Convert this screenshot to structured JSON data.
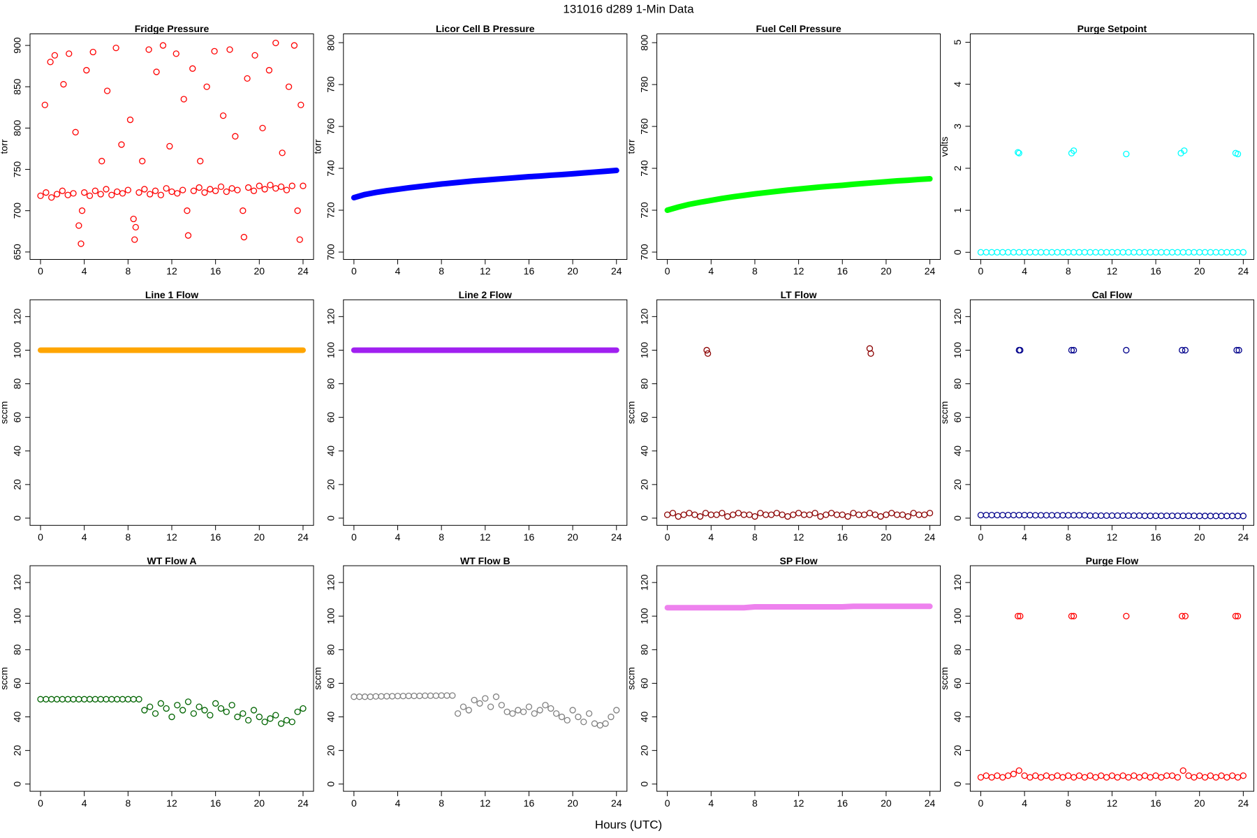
{
  "title": "131016   d289   1-Min Data",
  "x_label": "Hours (UTC)",
  "chart_data": [
    {
      "type": "scatter",
      "title": "Fridge Pressure",
      "y_label": "torr",
      "color": "#ff0000",
      "x": [
        0,
        0.5,
        1,
        1.5,
        2,
        2.5,
        3,
        3.5,
        3.7,
        3.8,
        4,
        4.5,
        5,
        5.5,
        6,
        6.5,
        7,
        7.5,
        8,
        8.5,
        8.6,
        8.7,
        9,
        9.5,
        10,
        10.5,
        11,
        11.5,
        12,
        12.5,
        13,
        13.4,
        13.5,
        14,
        14.5,
        15,
        15.5,
        16,
        16.5,
        17,
        17.5,
        18,
        18.5,
        18.6,
        19,
        19.5,
        20,
        20.5,
        21,
        21.5,
        22,
        22.5,
        23,
        23.5,
        23.7,
        24,
        0.4,
        0.9,
        1.3,
        2.1,
        2.6,
        3.2,
        4.2,
        4.8,
        5.6,
        6.1,
        6.9,
        7.4,
        8.2,
        9.3,
        9.9,
        10.6,
        11.2,
        11.8,
        12.4,
        13.1,
        13.9,
        14.6,
        15.2,
        15.9,
        16.7,
        17.3,
        17.8,
        18.9,
        19.6,
        20.3,
        20.9,
        21.5,
        22.1,
        22.7,
        23.2,
        23.8
      ],
      "values": [
        718,
        722,
        716,
        720,
        724,
        719,
        721,
        682,
        660,
        700,
        722,
        718,
        724,
        720,
        726,
        719,
        723,
        721,
        725,
        690,
        665,
        680,
        722,
        726,
        720,
        724,
        719,
        727,
        723,
        721,
        725,
        700,
        670,
        724,
        728,
        722,
        726,
        724,
        729,
        723,
        727,
        725,
        700,
        668,
        728,
        724,
        730,
        726,
        731,
        727,
        729,
        725,
        730,
        700,
        665,
        730,
        828,
        880,
        888,
        853,
        890,
        795,
        870,
        892,
        760,
        845,
        897,
        780,
        810,
        760,
        895,
        868,
        900,
        778,
        890,
        835,
        872,
        760,
        850,
        893,
        815,
        895,
        790,
        860,
        888,
        800,
        870,
        903,
        770,
        850,
        900,
        828
      ],
      "xlim": [
        -0.96,
        24.96
      ],
      "xticks": [
        0,
        4,
        8,
        12,
        16,
        20,
        24
      ],
      "ylim": [
        641,
        914
      ],
      "yticks": [
        650,
        700,
        750,
        800,
        850,
        900
      ]
    },
    {
      "type": "line",
      "title": "Licor Cell B Pressure",
      "y_label": "torr",
      "color": "#0000ff",
      "x": [
        0,
        1,
        2,
        3,
        4,
        5,
        6,
        7,
        8,
        9,
        10,
        11,
        12,
        13,
        14,
        15,
        16,
        17,
        18,
        19,
        20,
        21,
        22,
        23,
        24
      ],
      "values": [
        726,
        727.5,
        728.5,
        729.3,
        730,
        730.7,
        731.3,
        731.9,
        732.5,
        733,
        733.5,
        734,
        734.4,
        734.8,
        735.2,
        735.6,
        736,
        736.3,
        736.7,
        737,
        737.4,
        737.8,
        738.2,
        738.6,
        739
      ],
      "xlim": [
        -0.96,
        24.96
      ],
      "xticks": [
        0,
        4,
        8,
        12,
        16,
        20,
        24
      ],
      "ylim": [
        696.5,
        804.2
      ],
      "yticks": [
        700,
        720,
        740,
        760,
        780,
        800
      ]
    },
    {
      "type": "line",
      "title": "Fuel Cell Pressure",
      "y_label": "torr",
      "color": "#00ff00",
      "x": [
        0,
        1,
        2,
        3,
        4,
        5,
        6,
        7,
        8,
        9,
        10,
        11,
        12,
        13,
        14,
        15,
        16,
        17,
        18,
        19,
        20,
        21,
        22,
        23,
        24
      ],
      "values": [
        720,
        721.5,
        722.8,
        723.8,
        724.7,
        725.6,
        726.4,
        727.1,
        727.8,
        728.4,
        729,
        729.6,
        730.1,
        730.6,
        731.1,
        731.5,
        731.9,
        732.4,
        732.8,
        733.2,
        733.6,
        734,
        734.3,
        734.7,
        735
      ],
      "xlim": [
        -0.96,
        24.96
      ],
      "xticks": [
        0,
        4,
        8,
        12,
        16,
        20,
        24
      ],
      "ylim": [
        696.5,
        804.2
      ],
      "yticks": [
        700,
        720,
        740,
        760,
        780,
        800
      ]
    },
    {
      "type": "scatter",
      "title": "Purge Setpoint",
      "y_label": "volts",
      "color": "#00ffff",
      "x": [
        0,
        0.5,
        1,
        1.5,
        2,
        2.5,
        3,
        3.5,
        4,
        4.5,
        5,
        5.5,
        6,
        6.5,
        7,
        7.5,
        8,
        8.5,
        9,
        9.5,
        10,
        10.5,
        11,
        11.5,
        12,
        12.5,
        13,
        13.5,
        14,
        14.5,
        15,
        15.5,
        16,
        16.5,
        17,
        17.5,
        18,
        18.5,
        19,
        19.5,
        20,
        20.5,
        21,
        21.5,
        22,
        22.5,
        23,
        23.5,
        24,
        3.4,
        3.5,
        8.3,
        8.5,
        13.3,
        18.3,
        18.6,
        23.3,
        23.5
      ],
      "values": [
        0,
        0,
        0,
        0,
        0,
        0,
        0,
        0,
        0,
        0,
        0,
        0,
        0,
        0,
        0,
        0,
        0,
        0,
        0,
        0,
        0,
        0,
        0,
        0,
        0,
        0,
        0,
        0,
        0,
        0,
        0,
        0,
        0,
        0,
        0,
        0,
        0,
        0,
        0,
        0,
        0,
        0,
        0,
        0,
        0,
        0,
        0,
        0,
        0,
        2.38,
        2.36,
        2.36,
        2.42,
        2.34,
        2.36,
        2.42,
        2.36,
        2.34
      ],
      "xlim": [
        -0.96,
        24.96
      ],
      "xticks": [
        0,
        4,
        8,
        12,
        16,
        20,
        24
      ],
      "ylim": [
        -0.17,
        5.2
      ],
      "yticks": [
        0,
        1,
        2,
        3,
        4,
        5
      ]
    },
    {
      "type": "line",
      "title": "Line 1 Flow",
      "y_label": "sccm",
      "color": "#ffa500",
      "x": [
        0,
        1,
        2,
        3,
        4,
        5,
        6,
        7,
        8,
        9,
        10,
        11,
        12,
        13,
        14,
        15,
        16,
        17,
        18,
        19,
        20,
        21,
        22,
        23,
        24
      ],
      "values": [
        100,
        100,
        100,
        100,
        100,
        100,
        100,
        100,
        100,
        100,
        100,
        100,
        100,
        100,
        100,
        100,
        100,
        100,
        100,
        100,
        100,
        100,
        100,
        100,
        100
      ],
      "xlim": [
        -0.96,
        24.96
      ],
      "xticks": [
        0,
        4,
        8,
        12,
        16,
        20,
        24
      ],
      "ylim": [
        -4.3,
        130
      ],
      "yticks": [
        0,
        20,
        40,
        60,
        80,
        100,
        120
      ]
    },
    {
      "type": "line",
      "title": "Line 2 Flow",
      "color": "#a020f0",
      "x": [
        0,
        1,
        2,
        3,
        4,
        5,
        6,
        7,
        8,
        9,
        10,
        11,
        12,
        13,
        14,
        15,
        16,
        17,
        18,
        19,
        20,
        21,
        22,
        23,
        24
      ],
      "values": [
        100,
        100,
        100,
        100,
        100,
        100,
        100,
        100,
        100,
        100,
        100,
        100,
        100,
        100,
        100,
        100,
        100,
        100,
        100,
        100,
        100,
        100,
        100,
        100,
        100
      ],
      "xlim": [
        -0.96,
        24.96
      ],
      "xticks": [
        0,
        4,
        8,
        12,
        16,
        20,
        24
      ],
      "ylim": [
        -4.3,
        130
      ],
      "yticks": [
        0,
        20,
        40,
        60,
        80,
        100,
        120
      ]
    },
    {
      "type": "scatter",
      "title": "LT Flow",
      "y_label": "sccm",
      "color": "#8b0000",
      "x": [
        0,
        0.5,
        1,
        1.5,
        2,
        2.5,
        3,
        3.5,
        4,
        4.5,
        5,
        5.5,
        6,
        6.5,
        7,
        7.5,
        8,
        8.5,
        9,
        9.5,
        10,
        10.5,
        11,
        11.5,
        12,
        12.5,
        13,
        13.5,
        14,
        14.5,
        15,
        15.5,
        16,
        16.5,
        17,
        17.5,
        18,
        18.5,
        19,
        19.5,
        20,
        20.5,
        21,
        21.5,
        22,
        22.5,
        23,
        23.5,
        24,
        3.6,
        3.7,
        18.5,
        18.6
      ],
      "values": [
        2,
        3,
        1,
        2,
        3,
        2,
        1,
        3,
        2,
        2,
        3,
        1,
        2,
        3,
        2,
        2,
        1,
        3,
        2,
        2,
        3,
        2,
        1,
        2,
        3,
        2,
        2,
        3,
        1,
        2,
        3,
        2,
        2,
        1,
        3,
        2,
        2,
        3,
        2,
        1,
        2,
        3,
        2,
        2,
        1,
        3,
        2,
        2,
        3,
        100,
        98,
        101,
        98
      ],
      "xlim": [
        -0.96,
        24.96
      ],
      "xticks": [
        0,
        4,
        8,
        12,
        16,
        20,
        24
      ],
      "ylim": [
        -4.3,
        130
      ],
      "yticks": [
        0,
        20,
        40,
        60,
        80,
        100,
        120
      ]
    },
    {
      "type": "scatter",
      "title": "Cal Flow",
      "y_label": "sccm",
      "color": "#00008b",
      "x": [
        0,
        0.5,
        1,
        1.5,
        2,
        2.5,
        3,
        3.5,
        4,
        4.5,
        5,
        5.5,
        6,
        6.5,
        7,
        7.5,
        8,
        8.5,
        9,
        9.5,
        10,
        10.5,
        11,
        11.5,
        12,
        12.5,
        13,
        13.5,
        14,
        14.5,
        15,
        15.5,
        16,
        16.5,
        17,
        17.5,
        18,
        18.5,
        19,
        19.5,
        20,
        20.5,
        21,
        21.5,
        22,
        22.5,
        23,
        23.5,
        24,
        3.5,
        3.6,
        8.3,
        8.5,
        13.3,
        18.4,
        18.7,
        23.4,
        23.6
      ],
      "values": [
        1.8,
        1.8,
        1.8,
        1.8,
        1.8,
        1.8,
        1.8,
        1.8,
        1.8,
        1.8,
        1.7,
        1.7,
        1.7,
        1.7,
        1.7,
        1.7,
        1.7,
        1.7,
        1.7,
        1.7,
        1.5,
        1.5,
        1.5,
        1.5,
        1.5,
        1.5,
        1.5,
        1.5,
        1.5,
        1.5,
        1.4,
        1.4,
        1.4,
        1.4,
        1.4,
        1.4,
        1.4,
        1.4,
        1.4,
        1.4,
        1.3,
        1.3,
        1.3,
        1.3,
        1.3,
        1.3,
        1.3,
        1.3,
        1.3,
        100,
        100,
        100,
        100,
        100,
        100,
        100,
        100,
        100
      ],
      "xlim": [
        -0.96,
        24.96
      ],
      "xticks": [
        0,
        4,
        8,
        12,
        16,
        20,
        24
      ],
      "ylim": [
        -4.3,
        130
      ],
      "yticks": [
        0,
        20,
        40,
        60,
        80,
        100,
        120
      ]
    },
    {
      "type": "scatter",
      "title": "WT Flow A",
      "y_label": "sccm",
      "color": "#006400",
      "x": [
        0,
        0.5,
        1,
        1.5,
        2,
        2.5,
        3,
        3.5,
        4,
        4.5,
        5,
        5.5,
        6,
        6.5,
        7,
        7.5,
        8,
        8.5,
        9,
        9.5,
        10,
        10.5,
        11,
        11.5,
        12,
        12.5,
        13,
        13.5,
        14,
        14.5,
        15,
        15.5,
        16,
        16.5,
        17,
        17.5,
        18,
        18.5,
        19,
        19.5,
        20,
        20.5,
        21,
        21.5,
        22,
        22.5,
        23,
        23.5,
        24
      ],
      "values": [
        50.5,
        50.5,
        50.5,
        50.5,
        50.5,
        50.5,
        50.5,
        50.5,
        50.5,
        50.5,
        50.5,
        50.5,
        50.5,
        50.5,
        50.5,
        50.5,
        50.5,
        50.5,
        50.5,
        44,
        46,
        42,
        48,
        45,
        40,
        47,
        44,
        49,
        42,
        46,
        44,
        41,
        48,
        45,
        43,
        47,
        40,
        42,
        38,
        44,
        40,
        37,
        39,
        41,
        36,
        38,
        37,
        43,
        45
      ],
      "xlim": [
        -0.96,
        24.96
      ],
      "xticks": [
        0,
        4,
        8,
        12,
        16,
        20,
        24
      ],
      "ylim": [
        -4.3,
        130
      ],
      "yticks": [
        0,
        20,
        40,
        60,
        80,
        100,
        120
      ]
    },
    {
      "type": "scatter",
      "title": "WT Flow B",
      "y_label": "sccm",
      "color": "#808080",
      "x": [
        0,
        0.5,
        1,
        1.5,
        2,
        2.5,
        3,
        3.5,
        4,
        4.5,
        5,
        5.5,
        6,
        6.5,
        7,
        7.5,
        8,
        8.5,
        9,
        9.5,
        10,
        10.5,
        11,
        11.5,
        12,
        12.5,
        13,
        13.5,
        14,
        14.5,
        15,
        15.5,
        16,
        16.5,
        17,
        17.5,
        18,
        18.5,
        19,
        19.5,
        20,
        20.5,
        21,
        21.5,
        22,
        22.5,
        23,
        23.5,
        24
      ],
      "values": [
        52,
        52,
        52,
        52,
        52.2,
        52.2,
        52.3,
        52.3,
        52.4,
        52.4,
        52.5,
        52.5,
        52.5,
        52.6,
        52.6,
        52.6,
        52.7,
        52.7,
        52.7,
        42,
        46,
        44,
        50,
        48,
        51,
        46,
        52,
        47,
        43,
        42,
        44,
        43,
        46,
        42,
        44,
        47,
        45,
        42,
        40,
        38,
        44,
        40,
        37,
        42,
        36,
        35,
        36,
        40,
        44
      ],
      "xlim": [
        -0.96,
        24.96
      ],
      "xticks": [
        0,
        4,
        8,
        12,
        16,
        20,
        24
      ],
      "ylim": [
        -4.3,
        130
      ],
      "yticks": [
        0,
        20,
        40,
        60,
        80,
        100,
        120
      ]
    },
    {
      "type": "line",
      "title": "SP Flow",
      "y_label": "sccm",
      "color": "#ee82ee",
      "x": [
        0,
        1,
        2,
        3,
        4,
        5,
        6,
        7,
        8,
        9,
        10,
        11,
        12,
        13,
        14,
        15,
        16,
        17,
        18,
        19,
        20,
        21,
        22,
        23,
        24
      ],
      "values": [
        105,
        105,
        105,
        105,
        105,
        105,
        105,
        105,
        105.5,
        105.5,
        105.5,
        105.5,
        105.5,
        105.5,
        105.5,
        105.5,
        105.5,
        105.8,
        105.8,
        105.8,
        105.8,
        105.8,
        105.8,
        105.8,
        105.8
      ],
      "xlim": [
        -0.96,
        24.96
      ],
      "xticks": [
        0,
        4,
        8,
        12,
        16,
        20,
        24
      ],
      "ylim": [
        -4.3,
        130
      ],
      "yticks": [
        0,
        20,
        40,
        60,
        80,
        100,
        120
      ]
    },
    {
      "type": "scatter",
      "title": "Purge Flow",
      "y_label": "sccm",
      "color": "#ff0000",
      "x": [
        0,
        0.5,
        1,
        1.5,
        2,
        2.5,
        3,
        3.5,
        4,
        4.5,
        5,
        5.5,
        6,
        6.5,
        7,
        7.5,
        8,
        8.5,
        9,
        9.5,
        10,
        10.5,
        11,
        11.5,
        12,
        12.5,
        13,
        13.5,
        14,
        14.5,
        15,
        15.5,
        16,
        16.5,
        17,
        17.5,
        18,
        18.5,
        19,
        19.5,
        20,
        20.5,
        21,
        21.5,
        22,
        22.5,
        23,
        23.5,
        24,
        3.4,
        3.6,
        8.3,
        8.5,
        13.3,
        18.4,
        18.7,
        23.3,
        23.5
      ],
      "values": [
        4,
        5,
        4,
        5,
        4,
        5,
        6,
        8,
        5,
        4,
        5,
        4,
        5,
        4,
        5,
        4,
        5,
        4,
        5,
        4,
        5,
        4,
        5,
        4,
        5,
        4,
        5,
        4,
        5,
        4,
        5,
        4,
        5,
        4,
        5,
        5,
        4,
        8,
        5,
        4,
        5,
        4,
        5,
        4,
        5,
        4,
        5,
        4,
        5,
        100,
        100,
        100,
        100,
        100,
        100,
        100,
        100,
        100
      ],
      "xlim": [
        -0.96,
        24.96
      ],
      "xticks": [
        0,
        4,
        8,
        12,
        16,
        20,
        24
      ],
      "ylim": [
        -4.3,
        130
      ],
      "yticks": [
        0,
        20,
        40,
        60,
        80,
        100,
        120
      ]
    }
  ]
}
